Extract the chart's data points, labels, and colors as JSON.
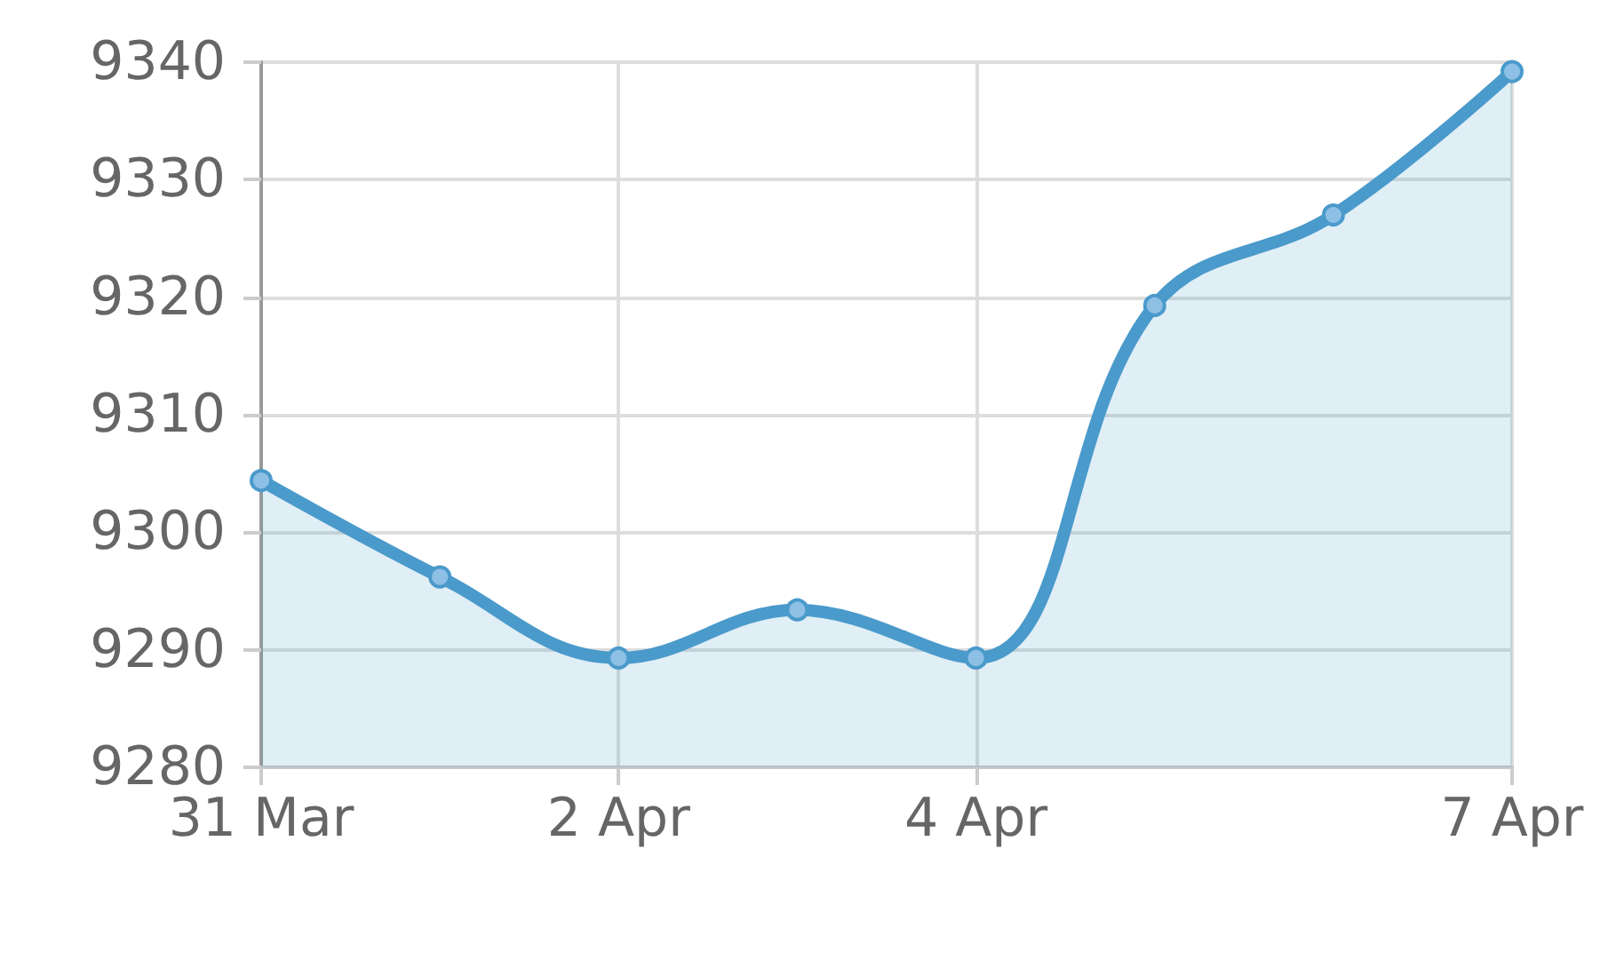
{
  "chart_data": {
    "type": "area",
    "x": [
      "--03-31",
      "--04-01",
      "--04-02",
      "--04-03",
      "--04-04",
      "--04-05",
      "--04-06",
      "--04-07"
    ],
    "series": [
      {
        "color": "#4a9acb",
        "values": [
          9304.4,
          9296.2,
          9289.3,
          9293.4,
          9289.3,
          9319.3,
          9327.0,
          9339.2
        ]
      }
    ],
    "xlim": [
      "--03-31",
      "--04-07"
    ],
    "xticks": [
      {
        "value": "--03-31",
        "label": "31 Mar"
      },
      {
        "value": "--04-02",
        "label": "2 Apr"
      },
      {
        "value": "--04-04",
        "label": "4 Apr"
      },
      {
        "value": "--04-07",
        "label": "7 Apr"
      }
    ],
    "ylim": [
      9280,
      9340
    ],
    "yticks": [
      9280,
      9290,
      9300,
      9310,
      9320,
      9330,
      9340
    ],
    "grid": true,
    "marker": "circle",
    "line_style": "solid"
  }
}
